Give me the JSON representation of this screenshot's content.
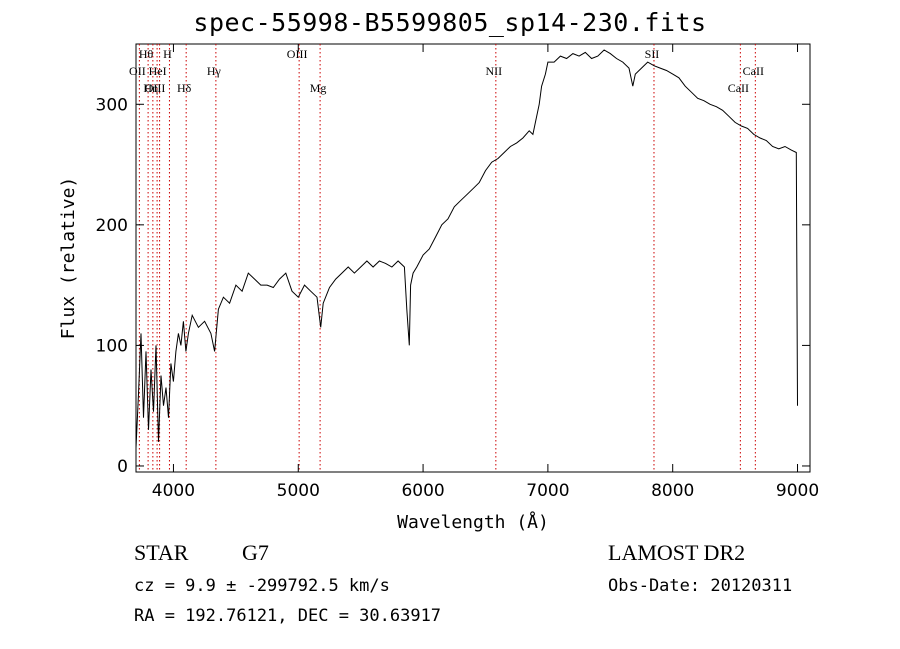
{
  "chart_data": {
    "type": "line",
    "title": "spec-55998-B5599805_sp14-230.fits",
    "xlabel": "Wavelength (Å)",
    "ylabel": "Flux (relative)",
    "xlim": [
      3700,
      9100
    ],
    "ylim": [
      -5,
      350
    ],
    "xticks": [
      4000,
      5000,
      6000,
      7000,
      8000,
      9000
    ],
    "yticks": [
      0,
      100,
      200,
      300
    ],
    "line_color": "#000000",
    "marker_color": "#cc0000",
    "series": [
      {
        "values_note": "",
        "points": [
          [
            3700,
            15
          ],
          [
            3720,
            60
          ],
          [
            3740,
            110
          ],
          [
            3760,
            40
          ],
          [
            3780,
            95
          ],
          [
            3800,
            30
          ],
          [
            3820,
            80
          ],
          [
            3840,
            45
          ],
          [
            3860,
            100
          ],
          [
            3880,
            20
          ],
          [
            3900,
            75
          ],
          [
            3920,
            50
          ],
          [
            3940,
            65
          ],
          [
            3960,
            40
          ],
          [
            3980,
            85
          ],
          [
            4000,
            70
          ],
          [
            4020,
            95
          ],
          [
            4040,
            110
          ],
          [
            4060,
            100
          ],
          [
            4080,
            120
          ],
          [
            4100,
            95
          ],
          [
            4120,
            110
          ],
          [
            4150,
            125
          ],
          [
            4200,
            115
          ],
          [
            4250,
            120
          ],
          [
            4300,
            110
          ],
          [
            4330,
            95
          ],
          [
            4360,
            130
          ],
          [
            4400,
            140
          ],
          [
            4450,
            135
          ],
          [
            4500,
            150
          ],
          [
            4550,
            145
          ],
          [
            4600,
            160
          ],
          [
            4650,
            155
          ],
          [
            4700,
            150
          ],
          [
            4750,
            150
          ],
          [
            4800,
            148
          ],
          [
            4850,
            155
          ],
          [
            4900,
            160
          ],
          [
            4950,
            145
          ],
          [
            5000,
            140
          ],
          [
            5050,
            150
          ],
          [
            5100,
            145
          ],
          [
            5150,
            140
          ],
          [
            5180,
            115
          ],
          [
            5200,
            135
          ],
          [
            5250,
            148
          ],
          [
            5300,
            155
          ],
          [
            5350,
            160
          ],
          [
            5400,
            165
          ],
          [
            5450,
            160
          ],
          [
            5500,
            165
          ],
          [
            5550,
            170
          ],
          [
            5600,
            165
          ],
          [
            5650,
            170
          ],
          [
            5700,
            168
          ],
          [
            5750,
            165
          ],
          [
            5800,
            170
          ],
          [
            5850,
            165
          ],
          [
            5870,
            130
          ],
          [
            5890,
            100
          ],
          [
            5900,
            150
          ],
          [
            5920,
            160
          ],
          [
            5950,
            165
          ],
          [
            6000,
            175
          ],
          [
            6050,
            180
          ],
          [
            6100,
            190
          ],
          [
            6150,
            200
          ],
          [
            6200,
            205
          ],
          [
            6250,
            215
          ],
          [
            6300,
            220
          ],
          [
            6350,
            225
          ],
          [
            6400,
            230
          ],
          [
            6450,
            235
          ],
          [
            6500,
            245
          ],
          [
            6550,
            252
          ],
          [
            6600,
            255
          ],
          [
            6650,
            260
          ],
          [
            6700,
            265
          ],
          [
            6750,
            268
          ],
          [
            6800,
            272
          ],
          [
            6850,
            278
          ],
          [
            6880,
            275
          ],
          [
            6900,
            285
          ],
          [
            6930,
            300
          ],
          [
            6950,
            315
          ],
          [
            6980,
            325
          ],
          [
            7000,
            335
          ],
          [
            7050,
            335
          ],
          [
            7100,
            340
          ],
          [
            7150,
            338
          ],
          [
            7200,
            342
          ],
          [
            7250,
            340
          ],
          [
            7300,
            343
          ],
          [
            7350,
            338
          ],
          [
            7400,
            340
          ],
          [
            7450,
            345
          ],
          [
            7500,
            342
          ],
          [
            7550,
            338
          ],
          [
            7600,
            335
          ],
          [
            7650,
            330
          ],
          [
            7680,
            315
          ],
          [
            7700,
            325
          ],
          [
            7750,
            330
          ],
          [
            7800,
            335
          ],
          [
            7850,
            332
          ],
          [
            7900,
            330
          ],
          [
            7950,
            328
          ],
          [
            8000,
            325
          ],
          [
            8050,
            322
          ],
          [
            8100,
            315
          ],
          [
            8150,
            310
          ],
          [
            8200,
            305
          ],
          [
            8250,
            303
          ],
          [
            8300,
            300
          ],
          [
            8350,
            298
          ],
          [
            8400,
            295
          ],
          [
            8450,
            290
          ],
          [
            8500,
            285
          ],
          [
            8550,
            282
          ],
          [
            8600,
            280
          ],
          [
            8650,
            275
          ],
          [
            8700,
            272
          ],
          [
            8750,
            270
          ],
          [
            8800,
            265
          ],
          [
            8850,
            263
          ],
          [
            8900,
            265
          ],
          [
            8950,
            262
          ],
          [
            8990,
            260
          ],
          [
            9000,
            50
          ]
        ]
      }
    ],
    "lines": [
      {
        "label": "OII",
        "x": 3727,
        "row": 2
      },
      {
        "label": "Hθ",
        "x": 3797,
        "row": 1
      },
      {
        "label": "Hη",
        "x": 3835,
        "row": 3
      },
      {
        "label": "HeI",
        "x": 3889,
        "row": 2
      },
      {
        "label": "OIII",
        "x": 3869,
        "row": 3
      },
      {
        "label": "H",
        "x": 3968,
        "row": 1
      },
      {
        "label": "Hδ",
        "x": 4102,
        "row": 3
      },
      {
        "label": "Hγ",
        "x": 4340,
        "row": 2
      },
      {
        "label": "OIII",
        "x": 5007,
        "row": 1
      },
      {
        "label": "Mg",
        "x": 5175,
        "row": 3
      },
      {
        "label": "NII",
        "x": 6583,
        "row": 2
      },
      {
        "label": "SII",
        "x": 7850,
        "row": 1
      },
      {
        "label": "CaII",
        "x": 8542,
        "row": 3
      },
      {
        "label": "CaII",
        "x": 8662,
        "row": 2
      }
    ]
  },
  "info": {
    "class": "STAR",
    "subclass": "G7",
    "survey": "LAMOST DR2",
    "cz": "cz = 9.9 ± -299792.5 km/s",
    "obs_date": "Obs-Date: 20120311",
    "radec": "RA = 192.76121, DEC =  30.63917"
  }
}
